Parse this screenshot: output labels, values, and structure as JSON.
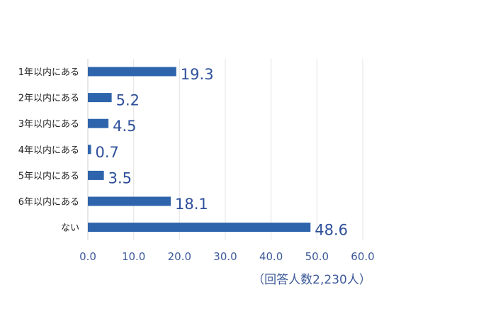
{
  "chart_data": {
    "type": "bar",
    "orientation": "horizontal",
    "categories": [
      "1年以内にある",
      "2年以内にある",
      "3年以内にある",
      "4年以内にある",
      "5年以内にある",
      "6年以内にある",
      "ない"
    ],
    "values": [
      19.3,
      5.2,
      4.5,
      0.7,
      3.5,
      18.1,
      48.6
    ],
    "value_labels": [
      "19.3",
      "5.2",
      "4.5",
      "0.7",
      "3.5",
      "18.1",
      "48.6"
    ],
    "xlim": [
      0,
      60
    ],
    "x_ticks": [
      "0.0",
      "10.0",
      "20.0",
      "30.0",
      "40.0",
      "50.0",
      "60.0"
    ],
    "grid": true,
    "bar_color": "#2e64ac",
    "note": "（回答人数2,230人）"
  }
}
